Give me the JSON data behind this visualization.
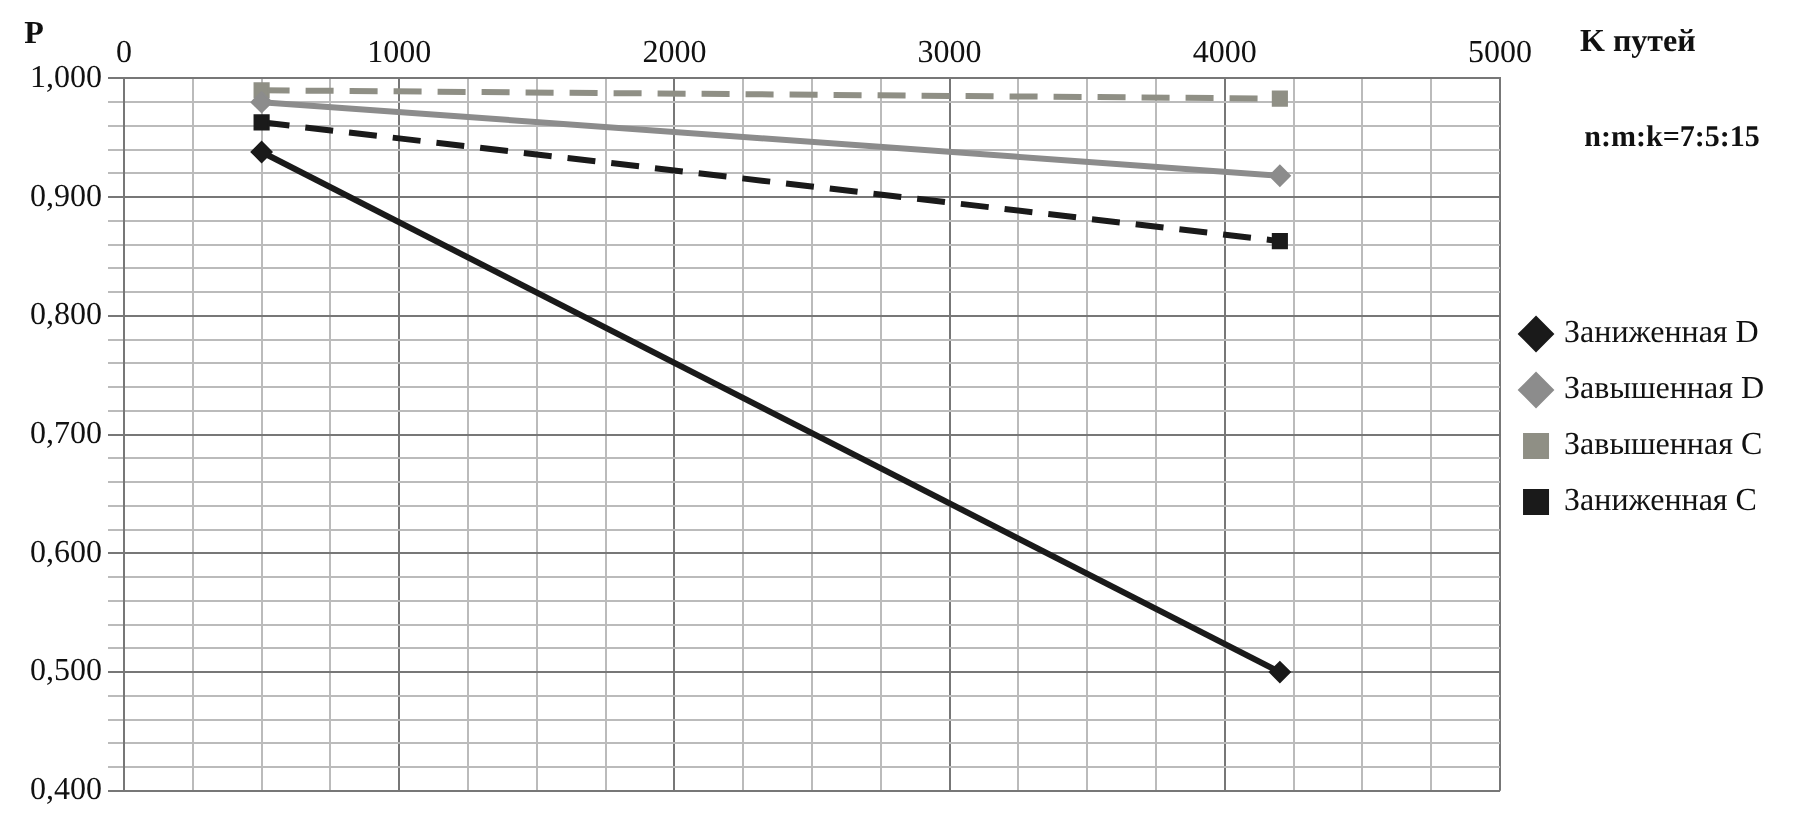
{
  "chart_data": {
    "type": "line",
    "xlabel": "K путей",
    "ylabel": "P",
    "annotations": [
      "n:m:k=7:5:15"
    ],
    "x": [
      500,
      4200
    ],
    "xlim": [
      0,
      5000
    ],
    "xticks": [
      0,
      {
        "value": 250,
        "label": null
      },
      {
        "value": 500,
        "label": null
      },
      {
        "value": 750,
        "label": null
      },
      1000,
      {
        "value": 1250,
        "label": null
      },
      {
        "value": 1500,
        "label": null
      },
      {
        "value": 1750,
        "label": null
      },
      2000,
      {
        "value": 2250,
        "label": null
      },
      {
        "value": 2500,
        "label": null
      },
      {
        "value": 2750,
        "label": null
      },
      3000,
      {
        "value": 3250,
        "label": null
      },
      {
        "value": 3500,
        "label": null
      },
      {
        "value": 3750,
        "label": null
      },
      4000,
      {
        "value": 4250,
        "label": null
      },
      {
        "value": 4500,
        "label": null
      },
      {
        "value": 4750,
        "label": null
      },
      5000
    ],
    "ylim": [
      0.4,
      1.0
    ],
    "yticks": [
      {
        "value": 0.4,
        "label": "0,400"
      },
      {
        "value": 0.42,
        "label": null
      },
      {
        "value": 0.44,
        "label": null
      },
      {
        "value": 0.46,
        "label": null
      },
      {
        "value": 0.48,
        "label": null
      },
      {
        "value": 0.5,
        "label": "0,500"
      },
      {
        "value": 0.52,
        "label": null
      },
      {
        "value": 0.54,
        "label": null
      },
      {
        "value": 0.56,
        "label": null
      },
      {
        "value": 0.58,
        "label": null
      },
      {
        "value": 0.6,
        "label": "0,600"
      },
      {
        "value": 0.62,
        "label": null
      },
      {
        "value": 0.64,
        "label": null
      },
      {
        "value": 0.66,
        "label": null
      },
      {
        "value": 0.68,
        "label": null
      },
      {
        "value": 0.7,
        "label": "0,700"
      },
      {
        "value": 0.72,
        "label": null
      },
      {
        "value": 0.74,
        "label": null
      },
      {
        "value": 0.76,
        "label": null
      },
      {
        "value": 0.78,
        "label": null
      },
      {
        "value": 0.8,
        "label": "0,800"
      },
      {
        "value": 0.82,
        "label": null
      },
      {
        "value": 0.84,
        "label": null
      },
      {
        "value": 0.86,
        "label": null
      },
      {
        "value": 0.88,
        "label": null
      },
      {
        "value": 0.9,
        "label": "0,900"
      },
      {
        "value": 0.92,
        "label": null
      },
      {
        "value": 0.94,
        "label": null
      },
      {
        "value": 0.96,
        "label": null
      },
      {
        "value": 0.98,
        "label": null
      },
      {
        "value": 1.0,
        "label": "1,000"
      }
    ],
    "grid": true,
    "legend": "right",
    "series": [
      {
        "name": "Заниженная D",
        "color": "#1a1a1a",
        "values": [
          0.938,
          0.5
        ],
        "marker": "diamond",
        "line_style": "solid"
      },
      {
        "name": "Завышенная D",
        "color": "#8c8c8c",
        "values": [
          0.98,
          0.918
        ],
        "marker": "diamond",
        "line_style": "solid"
      },
      {
        "name": "Завышенная C",
        "color": "#8f8f85",
        "values": [
          0.99,
          0.983
        ],
        "marker": "square",
        "line_style": "dashed"
      },
      {
        "name": "Заниженная C",
        "color": "#1a1a1a",
        "values": [
          0.963,
          0.863
        ],
        "marker": "square",
        "line_style": "dashed"
      }
    ]
  }
}
